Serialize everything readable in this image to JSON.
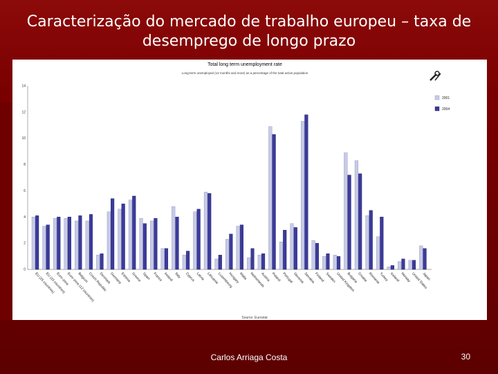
{
  "slide": {
    "title_line1": "Caracterização do mercado de trabalho europeu – taxa de",
    "title_line2": "desemprego de longo prazo",
    "author": "Carlos Arriaga Costa",
    "page_number": "30"
  },
  "colors": {
    "background": "#7a0000",
    "series_2001": "#c8cbe6",
    "series_2004": "#3b3b9c"
  },
  "chart_data": {
    "type": "bar",
    "title": "Total long term unemployment rate",
    "subtitle": "Long-term unemployed (12 months and more) as a percentage of the total active population",
    "source": "Source: Eurostat",
    "ylim": [
      0,
      14
    ],
    "yticks": [
      "0",
      "2",
      "4",
      "6",
      "8",
      "10",
      "12",
      "14"
    ],
    "legend_position": "top-right",
    "categories": [
      "EU (25 countries)",
      "EU (15 countries)",
      "Euro-zone",
      "Euro-zone (12 countries)",
      "Belgium",
      "Czech Republic",
      "Denmark",
      "Germany",
      "Estonia",
      "Greece",
      "Spain",
      "France",
      "Ireland",
      "Italy",
      "Cyprus",
      "Latvia",
      "Lithuania",
      "Luxembourg",
      "Hungary",
      "Malta",
      "Netherlands",
      "Austria",
      "Poland",
      "Portugal",
      "Slovenia",
      "Slovakia",
      "Finland",
      "Sweden",
      "United Kingdom",
      "Bulgaria",
      "Croatia",
      "Romania",
      "Turkey",
      "Iceland",
      "Norway",
      "United States",
      "Japan"
    ],
    "series": [
      {
        "name": "2001",
        "values": [
          4.0,
          3.3,
          3.9,
          3.9,
          3.7,
          3.7,
          1.1,
          4.4,
          4.6,
          5.3,
          3.9,
          3.7,
          1.6,
          4.8,
          1.1,
          4.4,
          5.9,
          0.8,
          2.3,
          3.3,
          0.9,
          1.1,
          10.9,
          2.1,
          3.5,
          11.3,
          2.2,
          1.0,
          1.1,
          8.9,
          8.3,
          4.1,
          2.5,
          0.2,
          0.6,
          0.7,
          1.8
        ]
      },
      {
        "name": "2004",
        "values": [
          4.1,
          3.4,
          4.0,
          4.0,
          4.1,
          4.2,
          1.2,
          5.4,
          5.0,
          5.6,
          3.5,
          3.9,
          1.6,
          4.0,
          1.4,
          4.6,
          5.8,
          1.1,
          2.7,
          3.4,
          1.6,
          1.2,
          10.3,
          3.0,
          3.2,
          11.8,
          2.0,
          1.2,
          1.0,
          7.2,
          7.3,
          4.5,
          4.0,
          0.3,
          0.8,
          0.7,
          1.6
        ]
      }
    ]
  }
}
